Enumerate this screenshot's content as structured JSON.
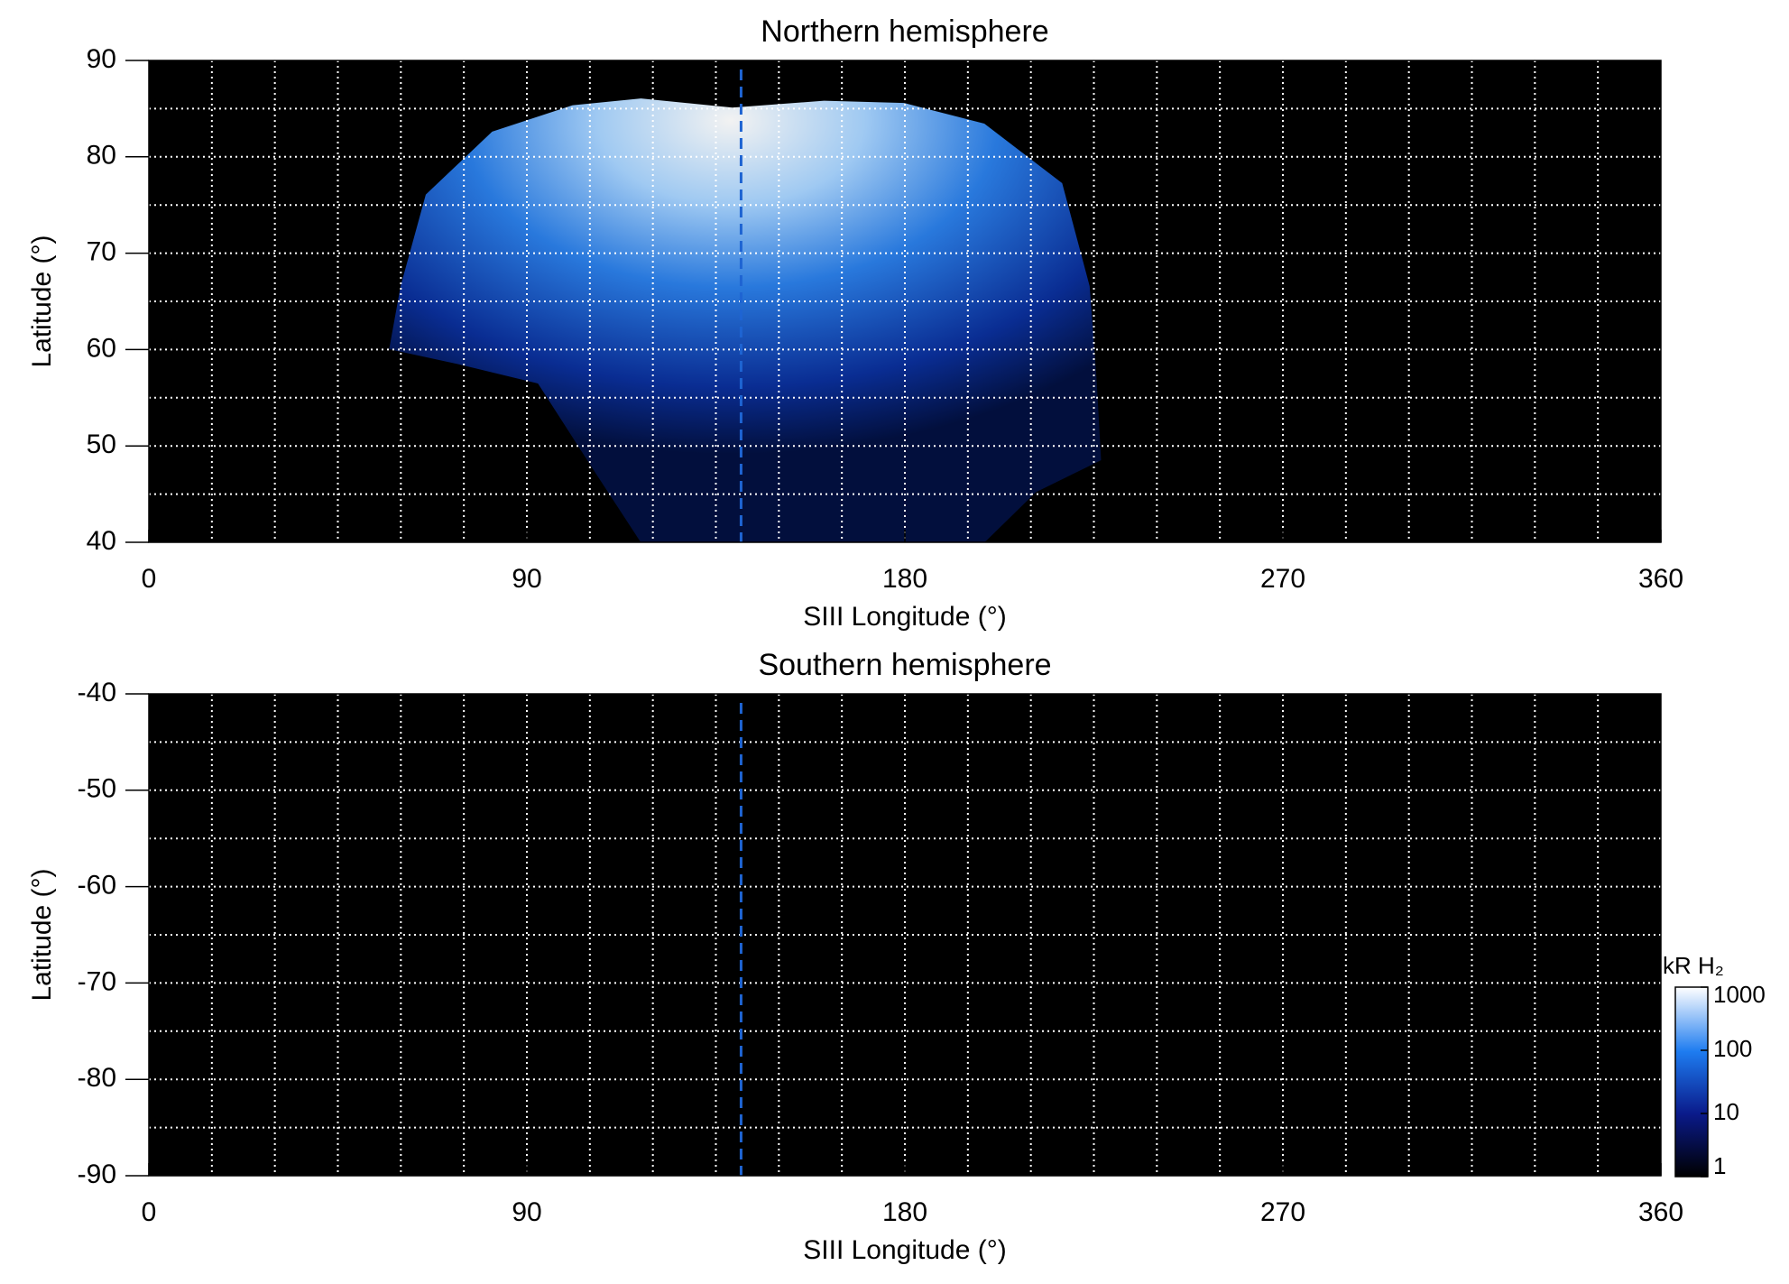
{
  "chart_data": [
    {
      "type": "heatmap",
      "title": "Northern hemisphere",
      "xlabel": "SIII Longitude (°)",
      "ylabel": "Latitude (°)",
      "xlim": [
        0,
        360
      ],
      "ylim": [
        40,
        90
      ],
      "xticks": [
        0,
        90,
        180,
        270,
        360
      ],
      "yticks": [
        40,
        50,
        60,
        70,
        80,
        90
      ],
      "xgrid": [
        15,
        30,
        45,
        60,
        75,
        90,
        105,
        120,
        135,
        150,
        165,
        180,
        195,
        210,
        225,
        240,
        255,
        270,
        285,
        300,
        315,
        330,
        345
      ],
      "ygrid": [
        45,
        50,
        55,
        60,
        65,
        70,
        75,
        80,
        85
      ],
      "grid": true,
      "background": "#000000",
      "marker_longitude": 141,
      "marker_color": "#1e64d2"
    },
    {
      "type": "heatmap",
      "title": "Southern hemisphere",
      "xlabel": "SIII Longitude (°)",
      "ylabel": "Latitude (°)",
      "xlim": [
        0,
        360
      ],
      "ylim": [
        -90,
        -40
      ],
      "xticks": [
        0,
        90,
        180,
        270,
        360
      ],
      "yticks": [
        -90,
        -80,
        -70,
        -60,
        -50,
        -40
      ],
      "xgrid": [
        15,
        30,
        45,
        60,
        75,
        90,
        105,
        120,
        135,
        150,
        165,
        180,
        195,
        210,
        225,
        240,
        255,
        270,
        285,
        300,
        315,
        330,
        345
      ],
      "ygrid": [
        -85,
        -80,
        -75,
        -70,
        -65,
        -60,
        -55,
        -50,
        -45
      ],
      "grid": true,
      "background": "#000000",
      "marker_longitude": 141,
      "marker_color": "#1e64d2",
      "colorbar": {
        "label": "kR H₂",
        "scale": "log",
        "lim": [
          1,
          1000
        ],
        "ticks": [
          1,
          10,
          100,
          1000
        ]
      }
    }
  ]
}
